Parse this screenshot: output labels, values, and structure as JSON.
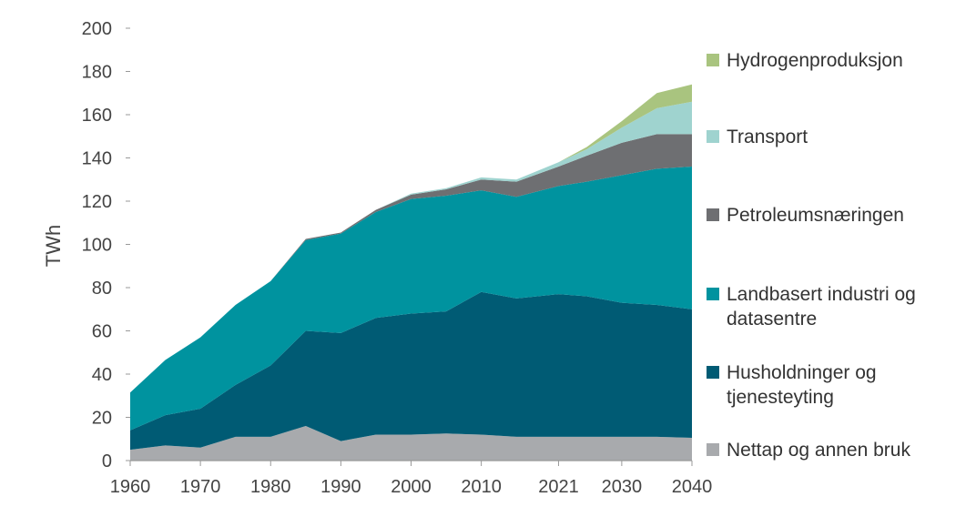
{
  "chart_data": {
    "type": "area",
    "stacked": true,
    "ylabel": "TWh",
    "ylim": [
      0,
      200
    ],
    "yticks": [
      0,
      20,
      40,
      60,
      80,
      100,
      120,
      140,
      160,
      180,
      200
    ],
    "x": [
      1960,
      1965,
      1970,
      1975,
      1980,
      1985,
      1990,
      1995,
      2000,
      2005,
      2010,
      2015,
      2021,
      2025,
      2030,
      2035,
      2040
    ],
    "xtick_labels": [
      "1960",
      "1970",
      "1980",
      "1990",
      "2000",
      "2010",
      "2021",
      "2030",
      "2040"
    ],
    "xtick_positions": [
      1960,
      1970,
      1980,
      1990,
      2000,
      2010,
      2021,
      2030,
      2040
    ],
    "legend_position": "right",
    "series": [
      {
        "name": "Nettap og annen bruk",
        "color": "#a8aaad",
        "values": [
          5,
          7,
          6,
          11,
          11,
          16,
          9,
          12,
          12,
          12.5,
          12,
          11,
          11,
          11,
          11,
          11,
          10.5
        ]
      },
      {
        "name": "Husholdninger og tjenesteyting",
        "color": "#005b74",
        "values": [
          9,
          14,
          18,
          24,
          33,
          44,
          50,
          54,
          56,
          56.5,
          66,
          64,
          66,
          65,
          62,
          61,
          59.5
        ]
      },
      {
        "name": "Landbasert industri og datasentre",
        "color": "#00939f",
        "values": [
          17.5,
          25.5,
          33,
          37,
          39,
          42,
          46,
          49,
          53,
          53.5,
          47,
          47,
          50,
          53,
          59,
          63,
          66
        ]
      },
      {
        "name": "Petroleumsnæringen",
        "color": "#6e6f72",
        "values": [
          0,
          0,
          0,
          0,
          0,
          0.5,
          0.5,
          1,
          2,
          3,
          5,
          7,
          9,
          12,
          15,
          16,
          15
        ]
      },
      {
        "name": "Transport",
        "color": "#9fd3cf",
        "values": [
          0,
          0,
          0,
          0,
          0,
          0,
          0,
          0,
          0.5,
          0.5,
          1,
          1,
          2,
          3,
          7,
          12,
          15
        ]
      },
      {
        "name": "Hydrogenproduksjon",
        "color": "#a9c47f",
        "values": [
          0,
          0,
          0,
          0,
          0,
          0,
          0,
          0,
          0,
          0,
          0,
          0,
          0,
          1,
          3,
          7,
          8
        ]
      }
    ]
  },
  "legend": {
    "items": [
      {
        "lines": [
          "Hydrogenproduksjon"
        ],
        "color": "#a9c47f"
      },
      {
        "lines": [
          "Transport"
        ],
        "color": "#9fd3cf"
      },
      {
        "lines": [
          "Petroleumsnæringen"
        ],
        "color": "#6e6f72"
      },
      {
        "lines": [
          "Landbasert industri og",
          "datasentre"
        ],
        "color": "#00939f"
      },
      {
        "lines": [
          "Husholdninger og",
          "tjenesteyting"
        ],
        "color": "#005b74"
      },
      {
        "lines": [
          "Nettap og annen bruk"
        ],
        "color": "#a8aaad"
      }
    ]
  }
}
